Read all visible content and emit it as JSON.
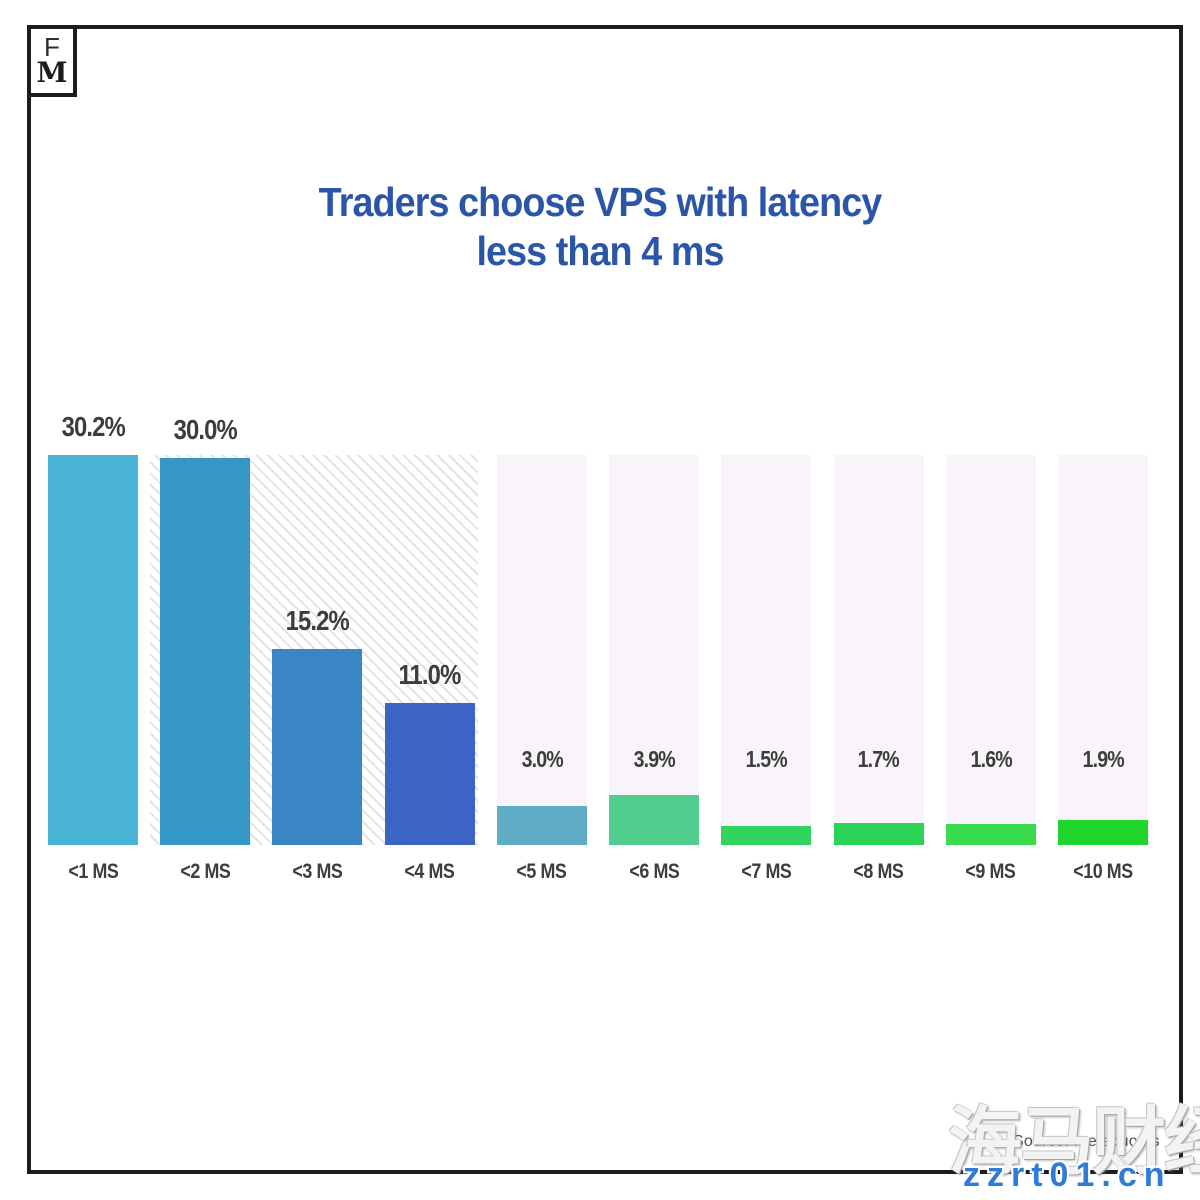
{
  "logo": {
    "top_letter": "F",
    "bottom_letter": "M"
  },
  "title": {
    "line1": "Traders choose VPS with latency",
    "line2": "less than 4 ms",
    "color": "#2b55a8"
  },
  "source": {
    "label": "Source: metaquotes"
  },
  "watermark": {
    "cjk": "海马财经",
    "url": "zzrt01.cn",
    "url_color": "#2f7cd8"
  },
  "chart_data": {
    "type": "bar",
    "title": "Traders choose VPS with latency less than 4 ms",
    "categories": [
      "<1 MS",
      "<2 MS",
      "<3 MS",
      "<4 MS",
      "<5 MS",
      "<6 MS",
      "<7 MS",
      "<8 MS",
      "<9 MS",
      "<10 MS"
    ],
    "values": [
      30.2,
      30.0,
      15.2,
      11.0,
      3.0,
      3.9,
      1.5,
      1.7,
      1.6,
      1.9
    ],
    "value_labels": [
      "30.2%",
      "30.0%",
      "15.2%",
      "11.0%",
      "3.0%",
      "3.9%",
      "1.5%",
      "1.7%",
      "1.6%",
      "1.9%"
    ],
    "bar_colors": [
      "#49b4d6",
      "#3597c4",
      "#3a86c4",
      "#3b64c4",
      "#5fadc4",
      "#4fce8e",
      "#33d45e",
      "#2bd456",
      "#39dc4c",
      "#1fd52e"
    ],
    "xlabel": "",
    "ylabel": "",
    "ylim": [
      0,
      30.2
    ],
    "grid": false,
    "legend": "none",
    "background": {
      "hatched_region_columns": [
        2,
        3,
        4
      ],
      "plain_columns": [
        5,
        6,
        7,
        8,
        9,
        10
      ],
      "plain_color": "#f8f4f9",
      "hatch_line_color": "#e4e1e8",
      "label_color": "#3d3d3d"
    }
  }
}
